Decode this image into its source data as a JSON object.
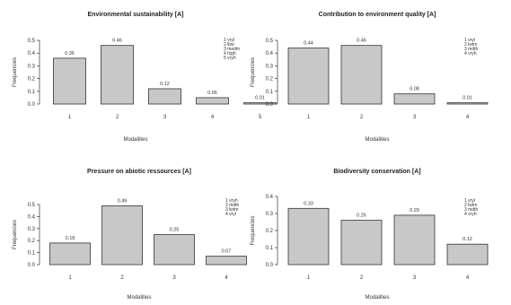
{
  "chart_data": [
    {
      "type": "bar",
      "title": "Environmental sustainability [A]",
      "xlabel": "Modalities",
      "ylabel": "Frequencies",
      "categories": [
        "1",
        "2",
        "3",
        "4",
        "5"
      ],
      "values": [
        0.36,
        0.46,
        0.12,
        0.05,
        0.01
      ],
      "value_labels": [
        "0.36",
        "0.46",
        "0.12",
        "0.05",
        "0.01"
      ],
      "ylim": [
        0,
        0.5
      ],
      "yticks": [
        "0.0",
        "0.1",
        "0.2",
        "0.3",
        "0.4",
        "0.5"
      ],
      "legend": [
        "1 vryl",
        "2 lbw",
        "3 medm",
        "4 high",
        "5 vryh"
      ]
    },
    {
      "type": "bar",
      "title": "Contribution to environment quality [A]",
      "xlabel": "Modalities",
      "ylabel": "Frequencies",
      "categories": [
        "1",
        "2",
        "3",
        "4"
      ],
      "values": [
        0.44,
        0.46,
        0.08,
        0.01
      ],
      "value_labels": [
        "0.44",
        "0.46",
        "0.08",
        "0.01"
      ],
      "ylim": [
        0,
        0.5
      ],
      "yticks": [
        "0.0",
        "0.1",
        "0.2",
        "0.3",
        "0.4",
        "0.5"
      ],
      "legend": [
        "1 vryl",
        "2 lwtm",
        "3 mdth",
        "4 vryh"
      ]
    },
    {
      "type": "bar",
      "title": "Pressure on abiotic ressources [A]",
      "xlabel": "Modalities",
      "ylabel": "Frequencies",
      "categories": [
        "1",
        "2",
        "3",
        "4"
      ],
      "values": [
        0.18,
        0.49,
        0.25,
        0.07
      ],
      "value_labels": [
        "0.18",
        "0.49",
        "0.25",
        "0.07"
      ],
      "ylim": [
        0,
        0.5
      ],
      "yticks": [
        "0.0",
        "0.1",
        "0.2",
        "0.3",
        "0.4",
        "0.5"
      ],
      "legend": [
        "1 vryh",
        "2 mdth",
        "3 lwtm",
        "4 vryl"
      ]
    },
    {
      "type": "bar",
      "title": "Biodiversity conservation [A]",
      "xlabel": "Modalities",
      "ylabel": "Frequencies",
      "categories": [
        "1",
        "2",
        "3",
        "4"
      ],
      "values": [
        0.33,
        0.26,
        0.29,
        0.12
      ],
      "value_labels": [
        "0.33",
        "0.26",
        "0.29",
        "0.12"
      ],
      "ylim": [
        0,
        0.4
      ],
      "yticks": [
        "0.0",
        "0.1",
        "0.2",
        "0.3",
        "0.4"
      ],
      "legend": [
        "1 vryl",
        "2 lwtm",
        "3 mdth",
        "4 vryh"
      ]
    }
  ]
}
